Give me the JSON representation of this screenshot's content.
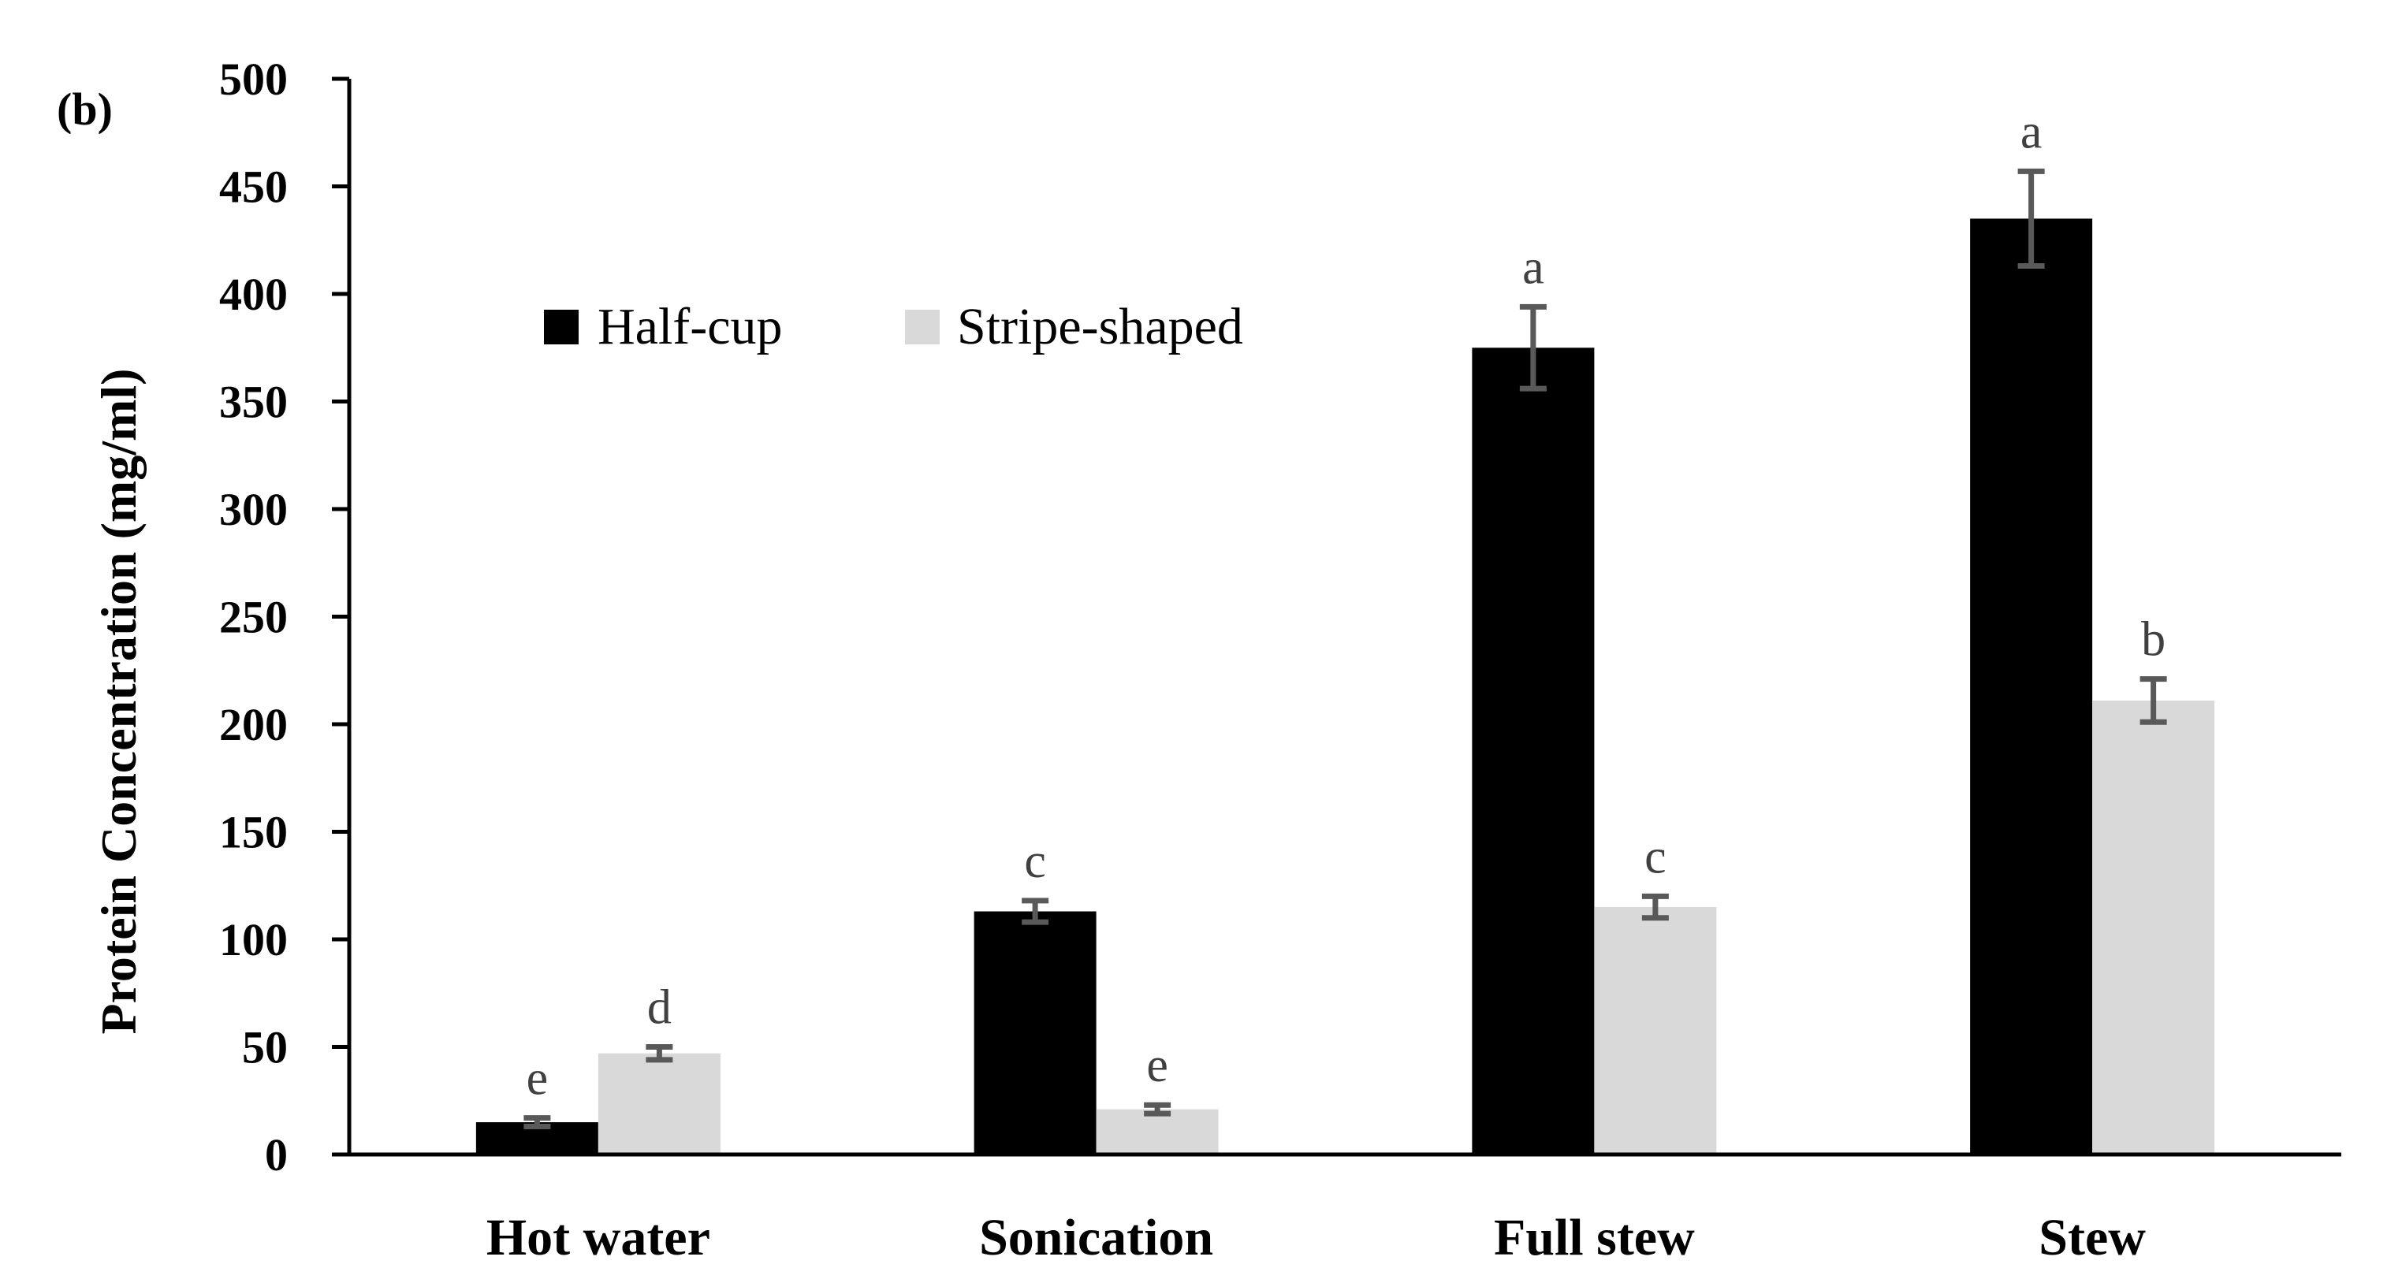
{
  "chart_data": {
    "type": "bar",
    "panel_label": "(b)",
    "title": "",
    "xlabel": "",
    "ylabel": "Protein Concentration (mg/ml)",
    "ylim": [
      0,
      500
    ],
    "yticks": [
      0,
      50,
      100,
      150,
      200,
      250,
      300,
      350,
      400,
      450,
      500
    ],
    "ytick_labels": [
      "0",
      "50",
      "100",
      "150",
      "200",
      "250",
      "300",
      "350",
      "400",
      "450",
      "500"
    ],
    "categories": [
      "Hot water",
      "Sonication",
      "Full stew",
      "Stew"
    ],
    "legend_position": "upper-left",
    "grid": false,
    "series": [
      {
        "name": "Half-cup",
        "color": "#000000",
        "values": [
          15,
          113,
          375,
          435
        ],
        "errors": [
          2,
          5,
          19,
          22
        ],
        "letters": [
          "e",
          "c",
          "a",
          "a"
        ]
      },
      {
        "name": "Stripe-shaped",
        "color": "#d9d9d9",
        "values": [
          47,
          21,
          115,
          211
        ],
        "errors": [
          3,
          2,
          5,
          10
        ],
        "letters": [
          "d",
          "e",
          "c",
          "b"
        ]
      }
    ],
    "error_bar_color": "#595959",
    "letter_color": "#404040"
  }
}
